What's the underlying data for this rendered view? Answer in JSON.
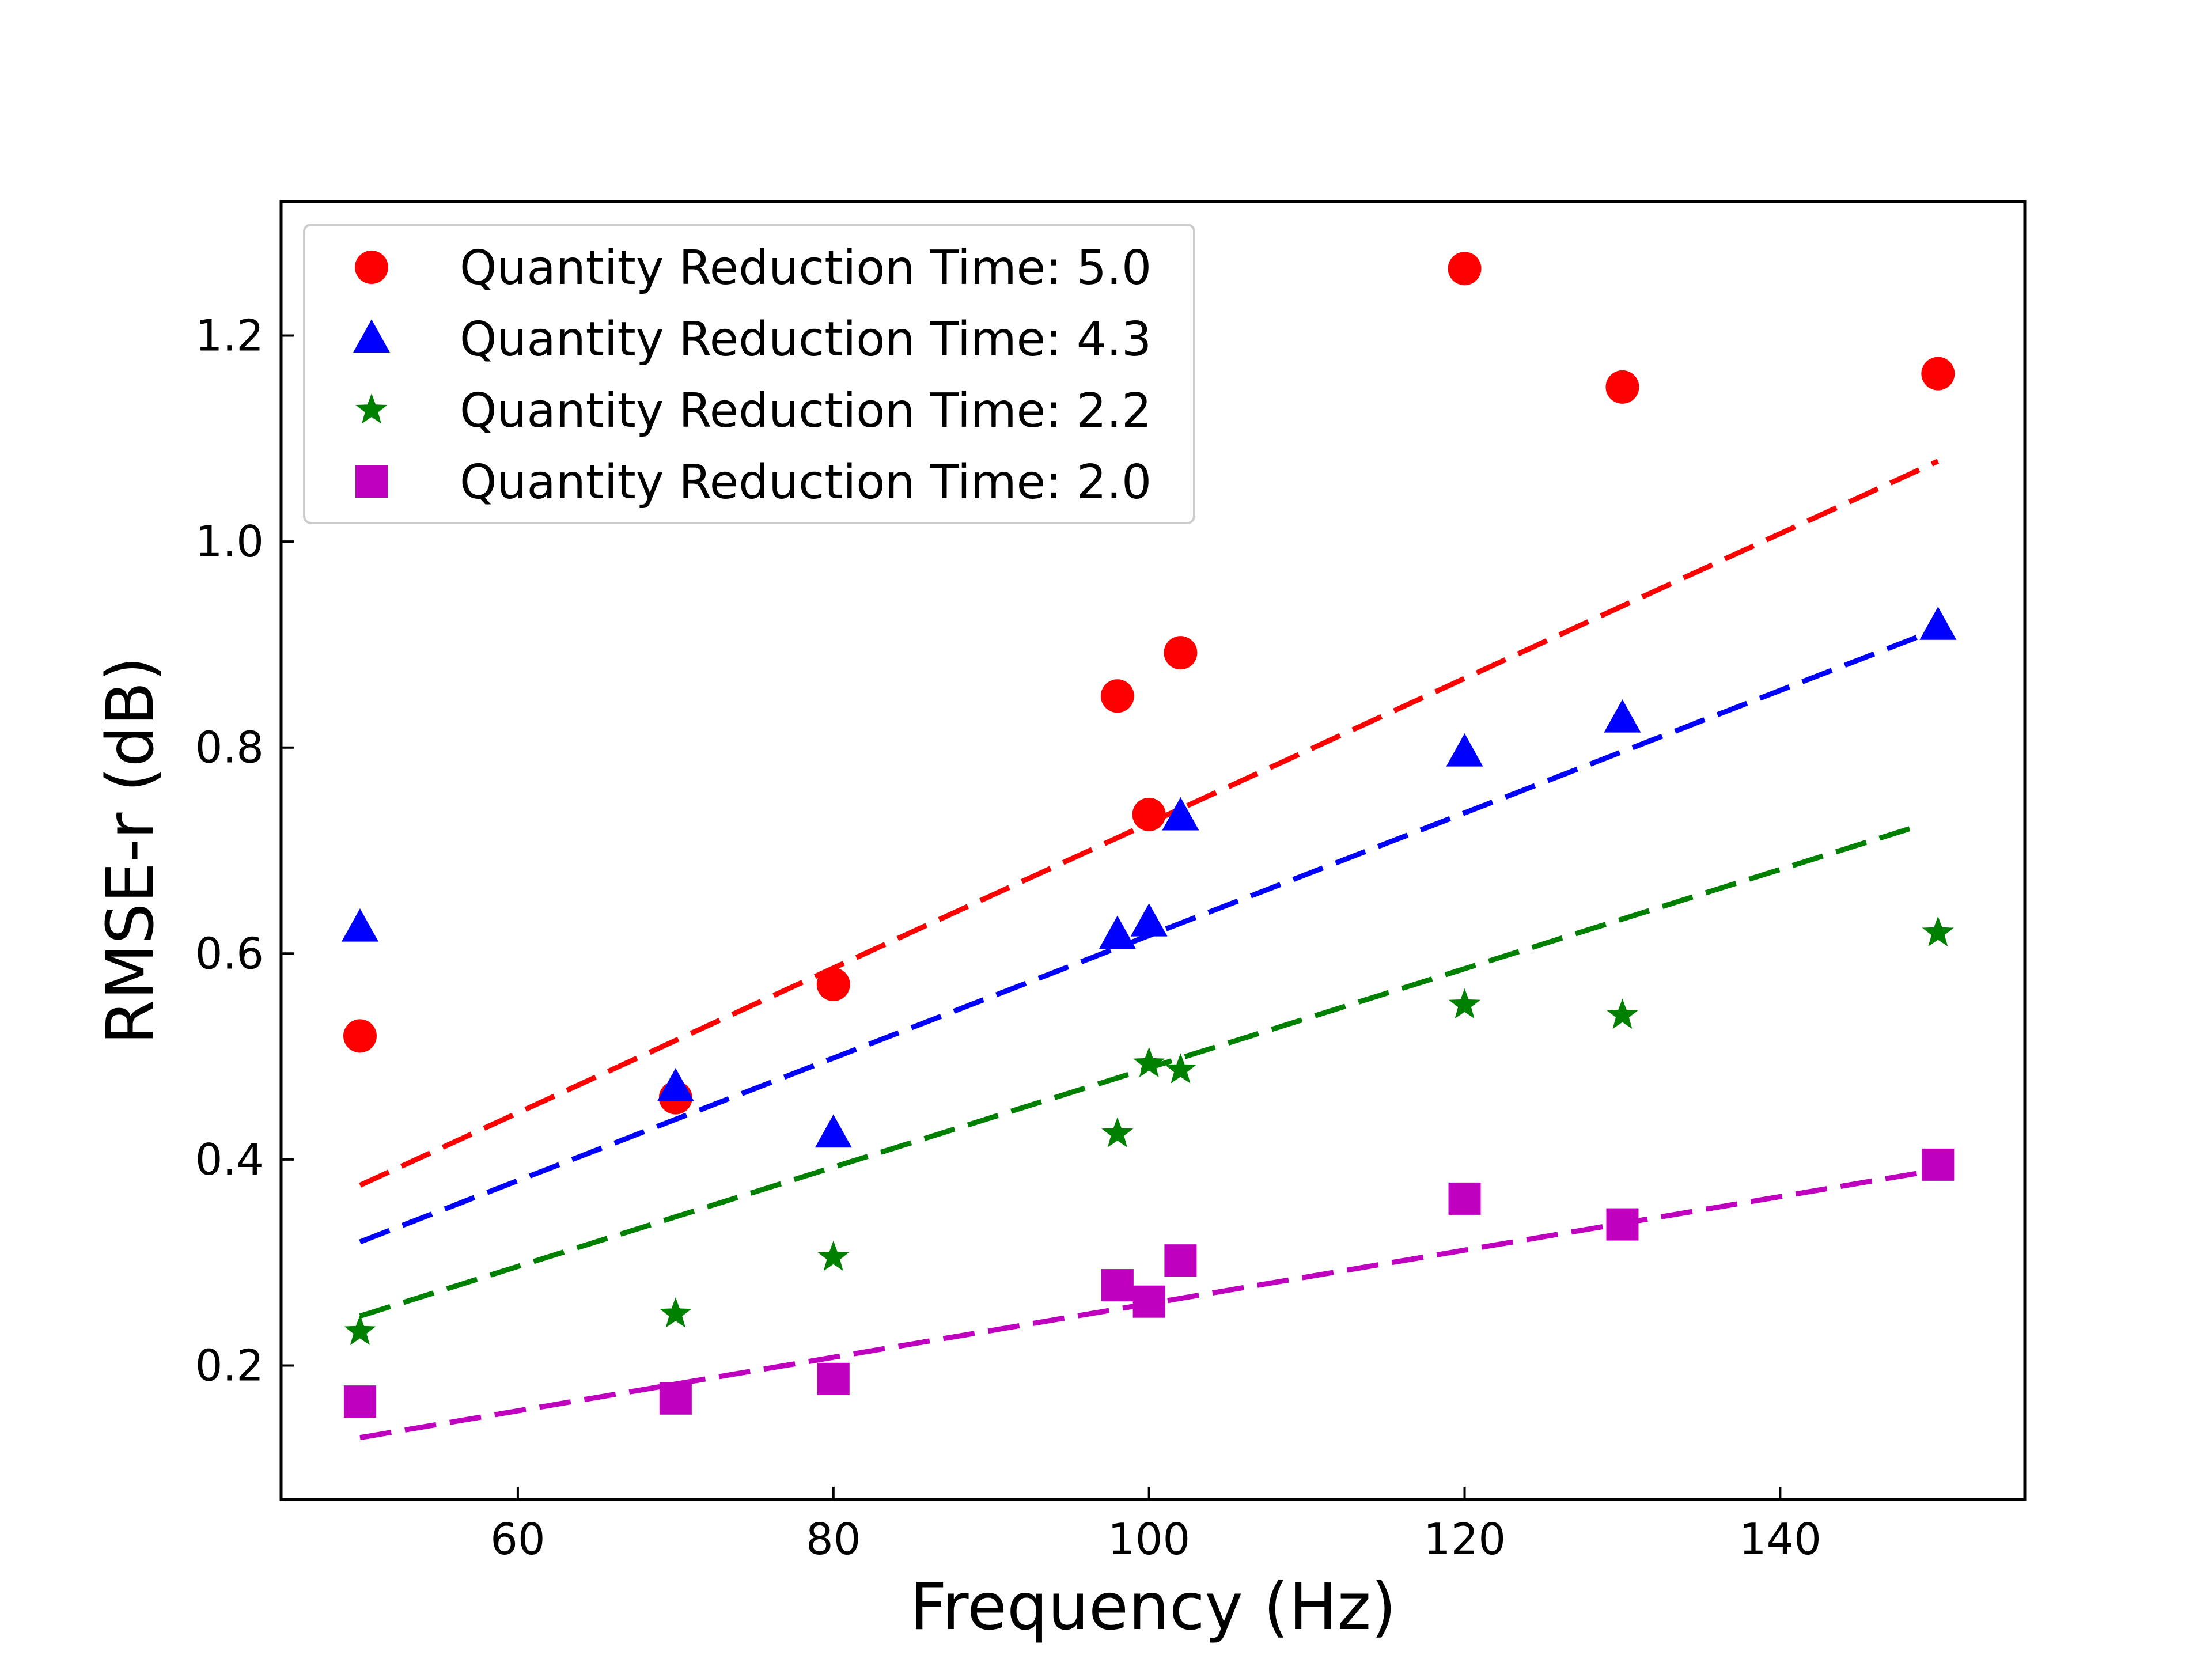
{
  "chart_data": {
    "type": "scatter",
    "title": "",
    "xlabel": "Frequency (Hz)",
    "ylabel": "RMSE-r (dB)",
    "xlim": [
      45,
      155.5
    ],
    "ylim": [
      0.07,
      1.33
    ],
    "xticks": [
      60,
      80,
      100,
      120,
      140
    ],
    "yticks": [
      0.2,
      0.4,
      0.6,
      0.8,
      1.0,
      1.2
    ],
    "xtick_labels": [
      "60",
      "80",
      "100",
      "120",
      "140"
    ],
    "ytick_labels": [
      "0.2",
      "0.4",
      "0.6",
      "0.8",
      "1.0",
      "1.2"
    ],
    "grid": false,
    "legend_position": "top-left",
    "series": [
      {
        "name": "Quantity Reduction Time: 5.0",
        "color": "#ff0000",
        "marker": "circle",
        "x": [
          50,
          70,
          80,
          98,
          100,
          102,
          120,
          130,
          150
        ],
        "y": [
          0.52,
          0.46,
          0.57,
          0.85,
          0.735,
          0.892,
          1.265,
          1.15,
          1.163
        ],
        "fit": {
          "x": [
            50,
            150
          ],
          "y": [
            0.375,
            1.078
          ],
          "curve": "linear"
        }
      },
      {
        "name": "Quantity Reduction Time: 4.3",
        "color": "#0000ff",
        "marker": "triangle",
        "x": [
          50,
          70,
          80,
          98,
          100,
          102,
          120,
          130,
          150
        ],
        "y": [
          0.625,
          0.47,
          0.425,
          0.618,
          0.63,
          0.733,
          0.795,
          0.828,
          0.918
        ],
        "fit": {
          "x": [
            50,
            150
          ],
          "y": [
            0.32,
            0.915
          ],
          "curve": "linear"
        }
      },
      {
        "name": "Quantity Reduction Time: 2.2",
        "color": "#008000",
        "marker": "star",
        "x": [
          50,
          70,
          80,
          98,
          100,
          102,
          120,
          130,
          150
        ],
        "y": [
          0.233,
          0.25,
          0.305,
          0.425,
          0.493,
          0.487,
          0.55,
          0.54,
          0.62
        ],
        "fit": {
          "x": [
            50,
            149
          ],
          "y": [
            0.248,
            0.725
          ],
          "curve": "linear"
        }
      },
      {
        "name": "Quantity Reduction Time: 2.0",
        "color": "#bf00bf",
        "marker": "square",
        "x": [
          50,
          70,
          80,
          98,
          100,
          102,
          120,
          130,
          150
        ],
        "y": [
          0.165,
          0.168,
          0.187,
          0.278,
          0.262,
          0.302,
          0.362,
          0.337,
          0.395
        ],
        "fit": {
          "x": [
            50,
            150
          ],
          "y": [
            0.13,
            0.39
          ],
          "curve": "power"
        }
      }
    ]
  }
}
